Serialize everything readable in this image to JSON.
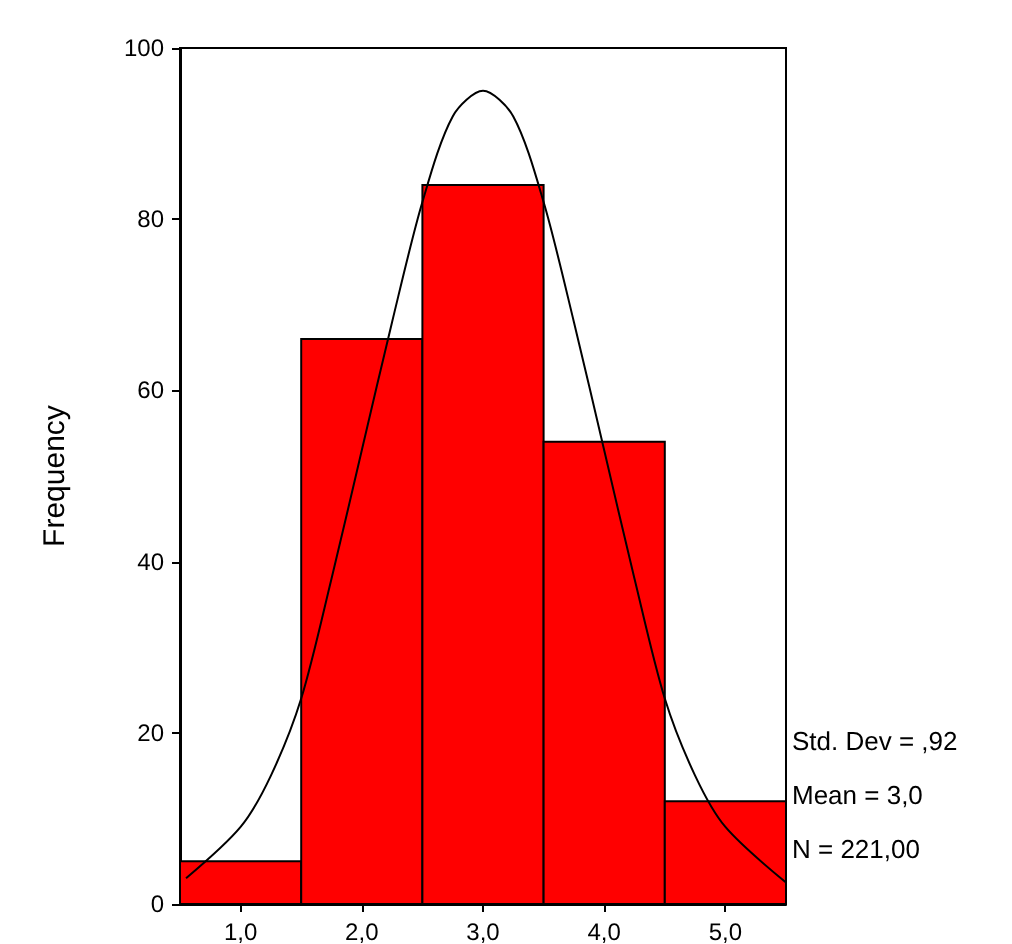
{
  "chart_data": {
    "type": "histogram",
    "ylabel": "Frequency",
    "annotations": [
      "Std. Dev = ,92",
      "Mean = 3,0",
      "N = 221,00"
    ],
    "series": [
      {
        "bins": [
          0.5,
          1.5,
          2.5,
          3.5,
          4.5,
          5.5
        ],
        "values": [
          5,
          66,
          84,
          54,
          12
        ],
        "color": "#ff0000"
      },
      {
        "type": "line",
        "color": "#000000",
        "x": [
          0.55,
          1.0,
          1.25,
          1.5,
          1.75,
          2.0,
          2.25,
          2.5,
          2.75,
          3.0,
          3.25,
          3.5,
          3.75,
          4.0,
          4.25,
          4.5,
          4.75,
          5.0,
          5.5
        ],
        "values": [
          3,
          9,
          15,
          24,
          38,
          53,
          68,
          82,
          92,
          95,
          92,
          82,
          68,
          53,
          38,
          24,
          15,
          9,
          2.5
        ]
      }
    ],
    "xlim": [
      0.5,
      5.5
    ],
    "xticks": [
      {
        "value": 1,
        "label": "1,0"
      },
      {
        "value": 2,
        "label": "2,0"
      },
      {
        "value": 3,
        "label": "3,0"
      },
      {
        "value": 4,
        "label": "4,0"
      },
      {
        "value": 5,
        "label": "5,0"
      }
    ],
    "ylim": [
      0,
      100
    ],
    "yticks": [
      0,
      20,
      40,
      60,
      80,
      100
    ],
    "marker": "none",
    "line_style": "solid",
    "grid": false
  }
}
